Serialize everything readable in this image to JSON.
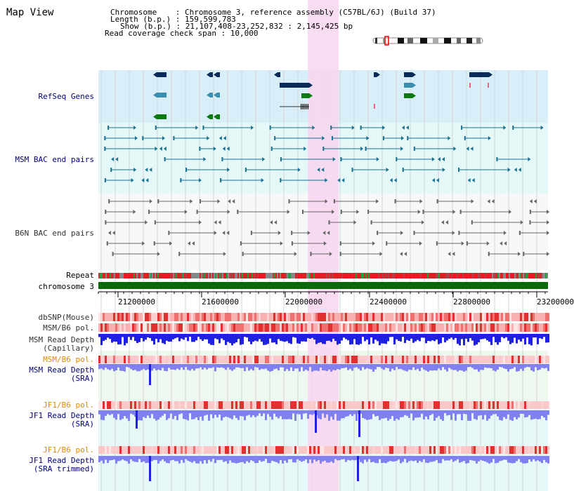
{
  "title": "Map View",
  "info": {
    "chromosome": "Chromosome    : Chromosome 3, reference assembly (C57BL/6J) (Build 37)",
    "length": "Length (b.p.) : 159,599,783",
    "show": "Show (b.p.) : 21,107,408-23,252,832 : 2,145,425 bp",
    "coverage": "Read coverage check span : 10,000"
  },
  "tracks": {
    "refseq": "RefSeq Genes",
    "msm_bac": "MSM BAC end pairs",
    "b6n_bac": "B6N BAC end pairs",
    "repeat": "Repeat",
    "chromosome": "chromosome 3",
    "dbsnp": "dbSNP(Mouse)",
    "msm_pol": "MSM/B6 pol.",
    "msm_depth_cap1": "MSM Read Depth",
    "msm_depth_cap2": "(Capillary)",
    "msm_pol2": "MSM/B6 pol.",
    "msm_depth_sra1": "MSM Read Depth",
    "msm_depth_sra2": "(SRA)",
    "jf1_pol": "JF1/B6 pol.",
    "jf1_depth_sra1": "JF1 Read Depth",
    "jf1_depth_sra2": "(SRA)",
    "jf1_pol2": "JF1/B6 pol.",
    "jf1_depth_tr1": "JF1 Read Depth",
    "jf1_depth_tr2": "(SRA trimmed)"
  },
  "axis": {
    "ticks": [
      "21200000",
      "21600000",
      "22000000",
      "22400000",
      "22800000",
      "23200000"
    ]
  },
  "colors": {
    "highlight": "#f8d6f0",
    "refseq_bg": "#d8eef8",
    "msm_bg": "#e4f8f8",
    "b6n_bg": "#f6f8fa",
    "gene_navy": "#0a2a5a",
    "gene_teal": "#3a8fb0",
    "gene_green": "#0a7a10",
    "chrom_green": "#0a6a0a",
    "depth_blue": "#2020e0",
    "depth_light": "#8080f0"
  }
}
